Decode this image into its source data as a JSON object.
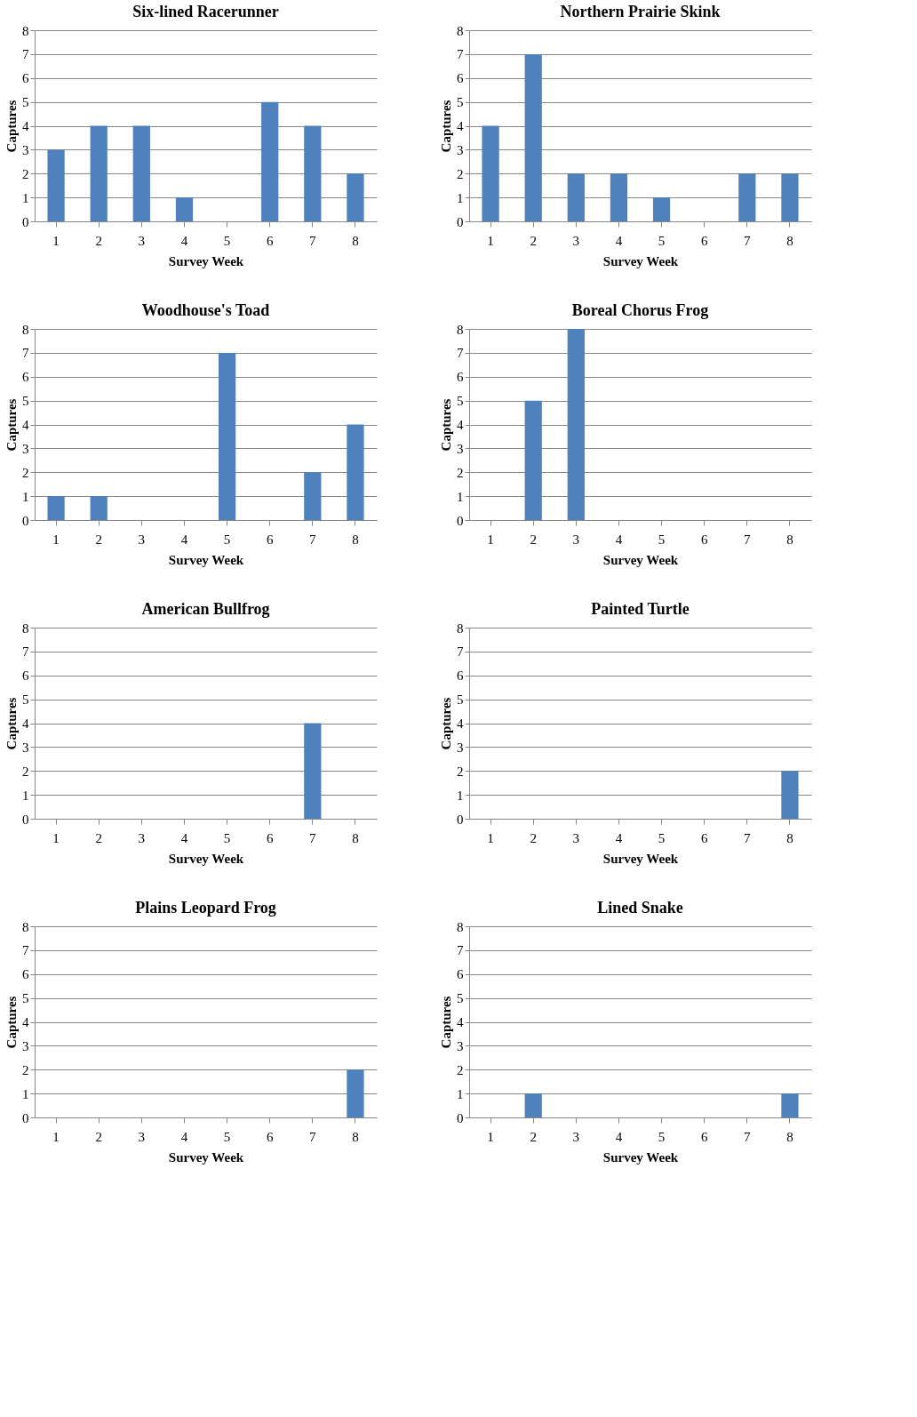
{
  "chart_data": [
    {
      "type": "bar",
      "title": "Six-lined Racerunner",
      "xlabel": "Survey Week",
      "ylabel": "Captures",
      "categories": [
        "1",
        "2",
        "3",
        "4",
        "5",
        "6",
        "7",
        "8"
      ],
      "values": [
        3,
        4,
        4,
        1,
        0,
        5,
        4,
        2
      ],
      "color": "#4f81bd",
      "ylim": [
        0,
        8
      ],
      "yticks": [
        0,
        1,
        2,
        3,
        4,
        5,
        6,
        7,
        8
      ],
      "grid": "y"
    },
    {
      "type": "bar",
      "title": "Northern Prairie Skink",
      "xlabel": "Survey Week",
      "ylabel": "Captures",
      "categories": [
        "1",
        "2",
        "3",
        "4",
        "5",
        "6",
        "7",
        "8"
      ],
      "values": [
        4,
        7,
        2,
        2,
        1,
        0,
        2,
        2
      ],
      "color": "#4f81bd",
      "ylim": [
        0,
        8
      ],
      "yticks": [
        0,
        1,
        2,
        3,
        4,
        5,
        6,
        7,
        8
      ],
      "grid": "y"
    },
    {
      "type": "bar",
      "title": "Woodhouse's Toad",
      "xlabel": "Survey Week",
      "ylabel": "Captures",
      "categories": [
        "1",
        "2",
        "3",
        "4",
        "5",
        "6",
        "7",
        "8"
      ],
      "values": [
        1,
        1,
        0,
        0,
        7,
        0,
        2,
        4
      ],
      "color": "#4f81bd",
      "ylim": [
        0,
        8
      ],
      "yticks": [
        0,
        1,
        2,
        3,
        4,
        5,
        6,
        7,
        8
      ],
      "grid": "y"
    },
    {
      "type": "bar",
      "title": "Boreal Chorus Frog",
      "xlabel": "Survey Week",
      "ylabel": "Captures",
      "categories": [
        "1",
        "2",
        "3",
        "4",
        "5",
        "6",
        "7",
        "8"
      ],
      "values": [
        0,
        5,
        8,
        0,
        0,
        0,
        0,
        0
      ],
      "color": "#4f81bd",
      "ylim": [
        0,
        8
      ],
      "yticks": [
        0,
        1,
        2,
        3,
        4,
        5,
        6,
        7,
        8
      ],
      "grid": "y"
    },
    {
      "type": "bar",
      "title": "American Bullfrog",
      "xlabel": "Survey Week",
      "ylabel": "Captures",
      "categories": [
        "1",
        "2",
        "3",
        "4",
        "5",
        "6",
        "7",
        "8"
      ],
      "values": [
        0,
        0,
        0,
        0,
        0,
        0,
        4,
        0
      ],
      "color": "#4f81bd",
      "ylim": [
        0,
        8
      ],
      "yticks": [
        0,
        1,
        2,
        3,
        4,
        5,
        6,
        7,
        8
      ],
      "grid": "y"
    },
    {
      "type": "bar",
      "title": "Painted Turtle",
      "xlabel": "Survey Week",
      "ylabel": "Captures",
      "categories": [
        "1",
        "2",
        "3",
        "4",
        "5",
        "6",
        "7",
        "8"
      ],
      "values": [
        0,
        0,
        0,
        0,
        0,
        0,
        0,
        2
      ],
      "color": "#4f81bd",
      "ylim": [
        0,
        8
      ],
      "yticks": [
        0,
        1,
        2,
        3,
        4,
        5,
        6,
        7,
        8
      ],
      "grid": "y"
    },
    {
      "type": "bar",
      "title": "Plains Leopard Frog",
      "xlabel": "Survey Week",
      "ylabel": "Captures",
      "categories": [
        "1",
        "2",
        "3",
        "4",
        "5",
        "6",
        "7",
        "8"
      ],
      "values": [
        0,
        0,
        0,
        0,
        0,
        0,
        0,
        2
      ],
      "color": "#4f81bd",
      "ylim": [
        0,
        8
      ],
      "yticks": [
        0,
        1,
        2,
        3,
        4,
        5,
        6,
        7,
        8
      ],
      "grid": "y"
    },
    {
      "type": "bar",
      "title": "Lined Snake",
      "xlabel": "Survey Week",
      "ylabel": "Captures",
      "categories": [
        "1",
        "2",
        "3",
        "4",
        "5",
        "6",
        "7",
        "8"
      ],
      "values": [
        0,
        1,
        0,
        0,
        0,
        0,
        0,
        1
      ],
      "color": "#4f81bd",
      "ylim": [
        0,
        8
      ],
      "yticks": [
        0,
        1,
        2,
        3,
        4,
        5,
        6,
        7,
        8
      ],
      "grid": "y"
    }
  ]
}
